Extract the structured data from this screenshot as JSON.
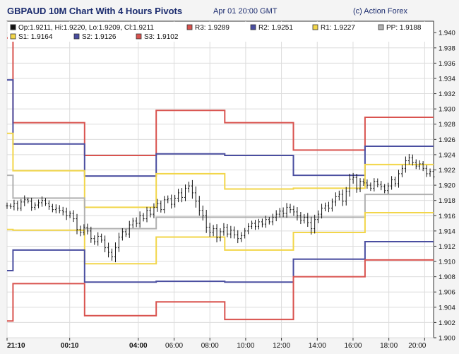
{
  "header": {
    "title": "GBPAUD 10M Chart With 4 Hours Pivots",
    "timestamp": "Apr 01 20:00 GMT",
    "copyright": "(c) Action Forex"
  },
  "legend": {
    "ohlc": "Op:1.9211, Hi:1.9220, Lo:1.9209, Cl:1.9211",
    "items": [
      {
        "label": "R3: 1.9289",
        "color": "#d9534f"
      },
      {
        "label": "R2: 1.9251",
        "color": "#4a4ea0"
      },
      {
        "label": "R1: 1.9227",
        "color": "#f2d64a"
      },
      {
        "label": "PP: 1.9188",
        "color": "#b0b0b0"
      },
      {
        "label": "S1: 1.9164",
        "color": "#f2d64a"
      },
      {
        "label": "S2: 1.9126",
        "color": "#4a4ea0"
      },
      {
        "label": "S3: 1.9102",
        "color": "#d9534f"
      }
    ]
  },
  "chart_data": {
    "type": "line",
    "title": "GBPAUD 10M Chart With 4 Hours Pivots",
    "xlabel": "",
    "ylabel": "",
    "ylim": [
      1.9,
      1.9415
    ],
    "xlim": [
      0,
      143
    ],
    "y_ticks": [
      1.9,
      1.902,
      1.904,
      1.906,
      1.908,
      1.91,
      1.912,
      1.914,
      1.916,
      1.918,
      1.92,
      1.922,
      1.924,
      1.926,
      1.928,
      1.93,
      1.932,
      1.934,
      1.936,
      1.938,
      1.94
    ],
    "x_ticks": [
      {
        "x": 0,
        "label": "21:10",
        "bold": true
      },
      {
        "x": 21,
        "label": "00:10",
        "bold": true
      },
      {
        "x": 44,
        "label": "04:00",
        "bold": true
      },
      {
        "x": 56,
        "label": "06:00",
        "bold": false
      },
      {
        "x": 68,
        "label": "08:00",
        "bold": false
      },
      {
        "x": 80,
        "label": "10:00",
        "bold": false
      },
      {
        "x": 92,
        "label": "12:00",
        "bold": false
      },
      {
        "x": 104,
        "label": "14:00",
        "bold": false
      },
      {
        "x": 116,
        "label": "16:00",
        "bold": false
      },
      {
        "x": 128,
        "label": "18:00",
        "bold": false
      },
      {
        "x": 140,
        "label": "20:00",
        "bold": false
      }
    ],
    "grid": true,
    "series": [
      {
        "name": "R3",
        "color": "#d9534f",
        "x": [
          0,
          2,
          2,
          26,
          26,
          50,
          50,
          73,
          73,
          96,
          96,
          120,
          120,
          143
        ],
        "y": [
          1.9393,
          1.9393,
          1.9282,
          1.9282,
          1.9239,
          1.9239,
          1.9298,
          1.9298,
          1.9282,
          1.9282,
          1.9246,
          1.9246,
          1.9289,
          1.9289
        ]
      },
      {
        "name": "R2",
        "color": "#4a4ea0",
        "x": [
          0,
          2,
          2,
          26,
          26,
          50,
          50,
          73,
          73,
          96,
          96,
          120,
          120,
          143
        ],
        "y": [
          1.9338,
          1.9338,
          1.9254,
          1.9254,
          1.9212,
          1.9212,
          1.9241,
          1.9241,
          1.9239,
          1.9239,
          1.9213,
          1.9213,
          1.9251,
          1.9251
        ]
      },
      {
        "name": "R1",
        "color": "#f2d64a",
        "x": [
          0,
          2,
          2,
          26,
          26,
          50,
          50,
          73,
          73,
          96,
          96,
          120,
          120,
          143
        ],
        "y": [
          1.9268,
          1.9268,
          1.9219,
          1.9219,
          1.9171,
          1.9171,
          1.9215,
          1.9215,
          1.9195,
          1.9195,
          1.9196,
          1.9196,
          1.9227,
          1.9227
        ]
      },
      {
        "name": "PP",
        "color": "#b0b0b0",
        "x": [
          0,
          2,
          2,
          26,
          26,
          50,
          50,
          73,
          73,
          96,
          96,
          120,
          120,
          143
        ],
        "y": [
          1.9213,
          1.9213,
          1.9183,
          1.9183,
          1.9143,
          1.9143,
          1.9158,
          1.9158,
          1.9158,
          1.9158,
          1.9158,
          1.9158,
          1.9188,
          1.9188
        ]
      },
      {
        "name": "S1",
        "color": "#f2d64a",
        "x": [
          0,
          2,
          2,
          26,
          26,
          50,
          50,
          73,
          73,
          96,
          96,
          120,
          120,
          143
        ],
        "y": [
          1.9142,
          1.9142,
          1.9141,
          1.9141,
          1.9097,
          1.9097,
          1.9132,
          1.9132,
          1.9115,
          1.9115,
          1.9138,
          1.9138,
          1.9164,
          1.9164
        ]
      },
      {
        "name": "S2",
        "color": "#4a4ea0",
        "x": [
          0,
          2,
          2,
          26,
          26,
          50,
          50,
          73,
          73,
          96,
          96,
          120,
          120,
          143
        ],
        "y": [
          1.9088,
          1.9088,
          1.9115,
          1.9115,
          1.9073,
          1.9073,
          1.9074,
          1.9074,
          1.9073,
          1.9073,
          1.9103,
          1.9103,
          1.9126,
          1.9126
        ]
      },
      {
        "name": "S3",
        "color": "#d9534f",
        "x": [
          0,
          2,
          2,
          26,
          26,
          50,
          50,
          73,
          73,
          96,
          96,
          120,
          120,
          143
        ],
        "y": [
          1.9022,
          1.9022,
          1.9071,
          1.9071,
          1.9029,
          1.9029,
          1.9047,
          1.9047,
          1.9024,
          1.9024,
          1.908,
          1.908,
          1.9102,
          1.9102
        ]
      }
    ],
    "price_bars": {
      "color": "#111111",
      "close": [
        1.9173,
        1.9172,
        1.9176,
        1.917,
        1.9178,
        1.9181,
        1.9179,
        1.9171,
        1.9174,
        1.9177,
        1.918,
        1.9176,
        1.9172,
        1.9168,
        1.917,
        1.9167,
        1.9165,
        1.916,
        1.9163,
        1.9156,
        1.9142,
        1.9138,
        1.9145,
        1.914,
        1.913,
        1.9126,
        1.9133,
        1.9128,
        1.9118,
        1.9112,
        1.9106,
        1.9118,
        1.9132,
        1.9139,
        1.9136,
        1.9148,
        1.9153,
        1.915,
        1.916,
        1.9156,
        1.9167,
        1.9162,
        1.9171,
        1.9176,
        1.9168,
        1.9181,
        1.9182,
        1.9175,
        1.9183,
        1.919,
        1.9184,
        1.9196,
        1.9199,
        1.919,
        1.9179,
        1.9167,
        1.916,
        1.9145,
        1.9138,
        1.9143,
        1.9131,
        1.9139,
        1.9145,
        1.9136,
        1.9141,
        1.9135,
        1.913,
        1.9134,
        1.914,
        1.9146,
        1.915,
        1.9146,
        1.9152,
        1.9149,
        1.9155,
        1.9152,
        1.9158,
        1.9162,
        1.9166,
        1.9163,
        1.9171,
        1.9168,
        1.9165,
        1.916,
        1.9154,
        1.9158,
        1.9151,
        1.9143,
        1.9155,
        1.9162,
        1.917,
        1.9173,
        1.917,
        1.9178,
        1.9185,
        1.9188,
        1.9179,
        1.9192,
        1.9208,
        1.921,
        1.9195,
        1.9205,
        1.9203,
        1.92,
        1.9196,
        1.9205,
        1.9201,
        1.9198,
        1.9193,
        1.9199,
        1.9207,
        1.9202,
        1.9215,
        1.9222,
        1.9232,
        1.9236,
        1.923,
        1.9225,
        1.9228,
        1.9222,
        1.9215,
        1.9218,
        1.9211
      ],
      "range": [
        0.0012,
        0.0009,
        0.0014,
        0.001,
        0.0011,
        0.0016,
        0.0008,
        0.0013,
        0.001,
        0.0012,
        0.0015,
        0.0009,
        0.0012,
        0.001,
        0.0014,
        0.0011,
        0.0013,
        0.0016,
        0.0009,
        0.0012,
        0.0018,
        0.0014,
        0.0011,
        0.0013,
        0.0016,
        0.0012,
        0.0015,
        0.001,
        0.0017,
        0.0019,
        0.0014,
        0.002,
        0.0016,
        0.0013,
        0.0011,
        0.0015,
        0.0012,
        0.0014,
        0.0016,
        0.001,
        0.0013,
        0.0012,
        0.0015,
        0.0017,
        0.0011,
        0.0014,
        0.0013,
        0.0016,
        0.0012,
        0.0015,
        0.0018,
        0.0014,
        0.0016,
        0.0022,
        0.0024,
        0.002,
        0.0018,
        0.0022,
        0.0016,
        0.0014,
        0.0017,
        0.0013,
        0.0015,
        0.0012,
        0.0016,
        0.0014,
        0.0017,
        0.0013,
        0.0011,
        0.0012,
        0.001,
        0.0013,
        0.0011,
        0.0012,
        0.0014,
        0.001,
        0.0013,
        0.0015,
        0.0012,
        0.0014,
        0.0016,
        0.0013,
        0.0015,
        0.0018,
        0.0014,
        0.0012,
        0.0016,
        0.0022,
        0.0018,
        0.0014,
        0.0016,
        0.0012,
        0.0015,
        0.0013,
        0.0016,
        0.0014,
        0.0018,
        0.0016,
        0.002,
        0.0017,
        0.0014,
        0.0012,
        0.0011,
        0.0013,
        0.001,
        0.0012,
        0.0011,
        0.0013,
        0.001,
        0.0012,
        0.0014,
        0.0012,
        0.0015,
        0.0013,
        0.0016,
        0.0014,
        0.0012,
        0.0011,
        0.0013,
        0.001,
        0.0012,
        0.0011,
        0.001
      ]
    }
  }
}
